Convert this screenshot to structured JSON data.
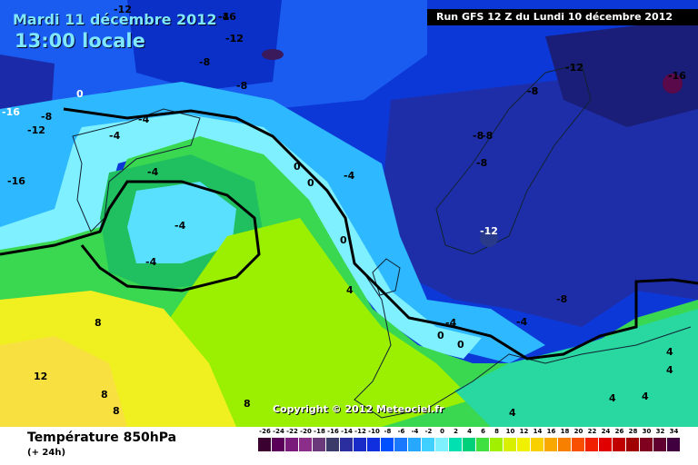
{
  "header": {
    "date": "Mardi 11 décembre 2012",
    "time": "13:00 locale",
    "run": "Run GFS 12 Z du Lundi 10 décembre 2012"
  },
  "copyright": "Copyright © 2012 Meteociel.fr",
  "footer": {
    "title": "Température 850hPa",
    "subtitle": "(+ 24h)"
  },
  "scale": {
    "labels": [
      "-26",
      "-24",
      "-22",
      "-20",
      "-18",
      "-16",
      "-14",
      "-12",
      "-10",
      "-8",
      "-6",
      "-4",
      "-2",
      "0",
      "2",
      "4",
      "6",
      "8",
      "10",
      "12",
      "14",
      "16",
      "18",
      "20",
      "22",
      "24",
      "26",
      "28",
      "30",
      "32",
      "34"
    ],
    "colors": [
      "#3a0030",
      "#5a0058",
      "#7a1a7a",
      "#8a2e8a",
      "#6a3a7a",
      "#3c3c6a",
      "#2a2e9e",
      "#1a2cc8",
      "#1030e0",
      "#0050ff",
      "#1a78ff",
      "#26a8ff",
      "#40d0ff",
      "#7ef0ff",
      "#00e0b0",
      "#00d07a",
      "#40e040",
      "#a0f000",
      "#d8f000",
      "#f0f000",
      "#f8d000",
      "#f8a800",
      "#f88000",
      "#f85000",
      "#f02000",
      "#e00000",
      "#c00000",
      "#a00000",
      "#800020",
      "#600030",
      "#400040"
    ]
  },
  "map_labels": [
    {
      "t": "-16",
      "c": "b"
    },
    {
      "t": "-12",
      "c": "b"
    },
    {
      "t": "-12",
      "c": "b"
    },
    {
      "t": "-8",
      "c": "b"
    },
    {
      "t": "-8",
      "c": "b"
    },
    {
      "t": "-8",
      "c": "b"
    },
    {
      "t": "-8",
      "c": "b"
    },
    {
      "t": "-16",
      "c": "b"
    },
    {
      "t": "-8",
      "c": "b"
    },
    {
      "t": "-12",
      "c": "b"
    },
    {
      "t": "-16",
      "c": "w"
    },
    {
      "t": "-16",
      "c": "b"
    },
    {
      "t": "0",
      "c": "w"
    },
    {
      "t": "-4",
      "c": "b"
    },
    {
      "t": "-4",
      "c": "b"
    },
    {
      "t": "-4",
      "c": "b"
    },
    {
      "t": "-4",
      "c": "b"
    },
    {
      "t": "-4",
      "c": "b"
    },
    {
      "t": "-8",
      "c": "b"
    },
    {
      "t": "-8",
      "c": "b"
    },
    {
      "t": "-12",
      "c": "w"
    },
    {
      "t": "-8",
      "c": "b"
    },
    {
      "t": "-8",
      "c": "b"
    },
    {
      "t": "-12",
      "c": "b"
    },
    {
      "t": "-12",
      "c": "b"
    },
    {
      "t": "0",
      "c": "b"
    },
    {
      "t": "0",
      "c": "b"
    },
    {
      "t": "0",
      "c": "b"
    },
    {
      "t": "-4",
      "c": "b"
    },
    {
      "t": "-4",
      "c": "b"
    },
    {
      "t": "4",
      "c": "b"
    },
    {
      "t": "-4",
      "c": "b"
    },
    {
      "t": "-4",
      "c": "b"
    },
    {
      "t": "0",
      "c": "b"
    },
    {
      "t": "0",
      "c": "b"
    },
    {
      "t": "8",
      "c": "b"
    },
    {
      "t": "12",
      "c": "b"
    },
    {
      "t": "8",
      "c": "b"
    },
    {
      "t": "8",
      "c": "b"
    },
    {
      "t": "8",
      "c": "b"
    },
    {
      "t": "4",
      "c": "b"
    },
    {
      "t": "4",
      "c": "b"
    },
    {
      "t": "4",
      "c": "b"
    },
    {
      "t": "4",
      "c": "b"
    },
    {
      "t": "4",
      "c": "b"
    }
  ]
}
